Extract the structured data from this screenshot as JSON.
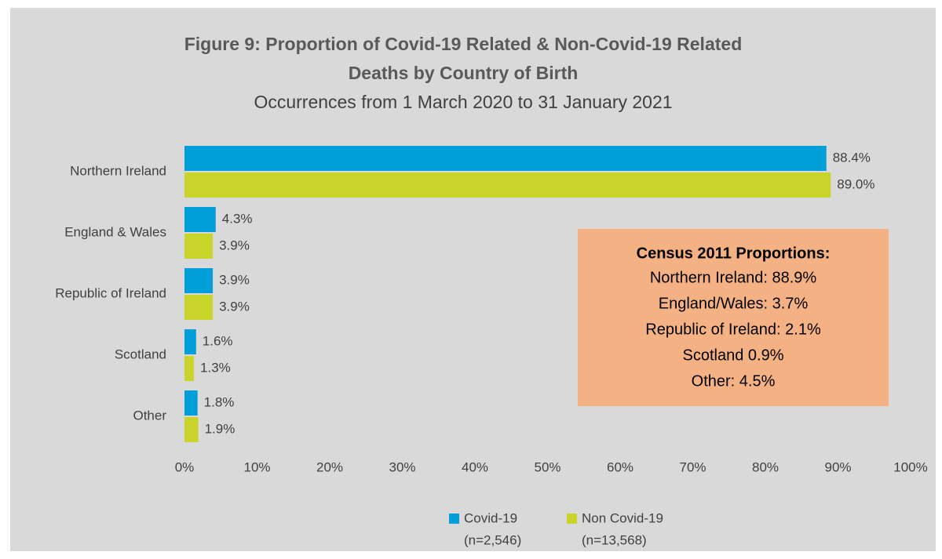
{
  "chart_data": {
    "type": "hbar",
    "title": [
      "Figure 9: Proportion of Covid-19 Related & Non-Covid-19 Related",
      "Deaths by Country of Birth"
    ],
    "subtitle": "Occurrences from 1 March 2020 to 31 January 2021",
    "categories": [
      "Northern Ireland",
      "England & Wales",
      "Republic of Ireland",
      "Scotland",
      "Other"
    ],
    "series": [
      {
        "name": "Covid-19",
        "n_label": "(n=2,546)",
        "color": "#009fd9",
        "values": [
          88.4,
          4.3,
          3.9,
          1.6,
          1.8
        ],
        "value_labels": [
          "88.4%",
          "4.3%",
          "3.9%",
          "1.6%",
          "1.8%"
        ]
      },
      {
        "name": "Non Covid-19",
        "n_label": "(n=13,568)",
        "color": "#c8d42a",
        "values": [
          89.0,
          3.9,
          3.9,
          1.3,
          1.9
        ],
        "value_labels": [
          "89.0%",
          "3.9%",
          "3.9%",
          "1.3%",
          "1.9%"
        ]
      }
    ],
    "xlim": [
      0,
      100
    ],
    "xticks": [
      {
        "value": 0,
        "label": "0%"
      },
      {
        "value": 10,
        "label": "10%"
      },
      {
        "value": 20,
        "label": "20%"
      },
      {
        "value": 30,
        "label": "30%"
      },
      {
        "value": 40,
        "label": "40%"
      },
      {
        "value": 50,
        "label": "50%"
      },
      {
        "value": 60,
        "label": "60%"
      },
      {
        "value": 70,
        "label": "70%"
      },
      {
        "value": 80,
        "label": "80%"
      },
      {
        "value": 90,
        "label": "90%"
      },
      {
        "value": 100,
        "label": "100%"
      }
    ],
    "grid": false,
    "annotation": {
      "title": "Census 2011 Proportions:",
      "lines": [
        "Northern Ireland: 88.9%",
        "England/Wales: 3.7%",
        "Republic of Ireland: 2.1%",
        "Scotland 0.9%",
        "Other: 4.5%"
      ],
      "color": "#f4b183"
    }
  }
}
